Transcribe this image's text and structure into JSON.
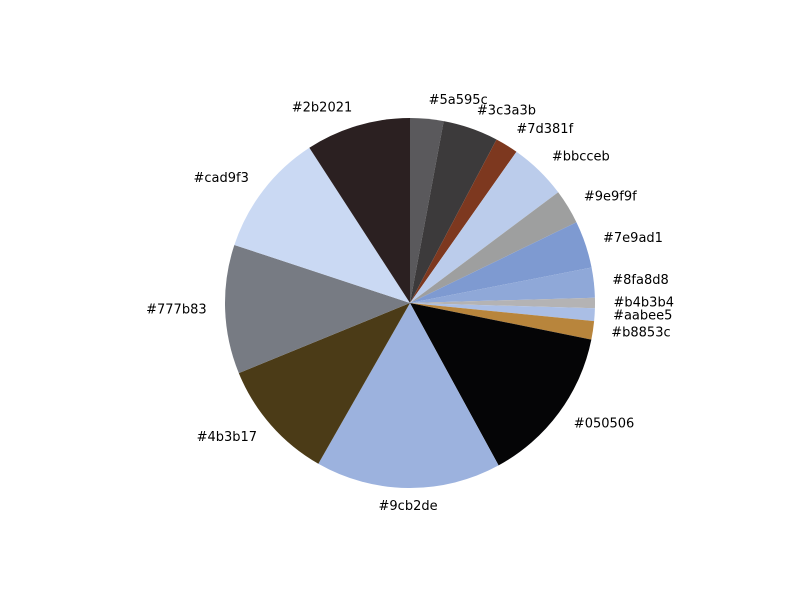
{
  "chart_data": {
    "type": "pie",
    "title": "",
    "start_angle_degrees": 90,
    "direction": "clockwise",
    "legend": "none",
    "slices": [
      {
        "label": "#5a595c",
        "value": 2.9,
        "color": "#5a595c"
      },
      {
        "label": "#3c3a3b",
        "value": 4.8,
        "color": "#3c3a3b"
      },
      {
        "label": "#7d381f",
        "value": 2.0,
        "color": "#7d381f"
      },
      {
        "label": "#bbcceb",
        "value": 5.0,
        "color": "#bbcceb"
      },
      {
        "label": "#9e9f9f",
        "value": 3.0,
        "color": "#9e9f9f"
      },
      {
        "label": "#7e9ad1",
        "value": 4.1,
        "color": "#7e9ad1"
      },
      {
        "label": "#8fa8d8",
        "value": 2.6,
        "color": "#8fa8d8"
      },
      {
        "label": "#b4b3b4",
        "value": 0.9,
        "color": "#b4b3b4"
      },
      {
        "label": "#aabee5",
        "value": 1.1,
        "color": "#aabee5"
      },
      {
        "label": "#b8853c",
        "value": 1.6,
        "color": "#b8853c"
      },
      {
        "label": "#050506",
        "value": 13.8,
        "color": "#050506"
      },
      {
        "label": "#9cb2de",
        "value": 16.1,
        "color": "#9cb2de"
      },
      {
        "label": "#4b3b17",
        "value": 10.5,
        "color": "#4b3b17"
      },
      {
        "label": "#777b83",
        "value": 11.2,
        "color": "#777b83"
      },
      {
        "label": "#cad9f3",
        "value": 10.7,
        "color": "#cad9f3"
      },
      {
        "label": "#2b2021",
        "value": 9.1,
        "color": "#2b2021"
      }
    ]
  }
}
